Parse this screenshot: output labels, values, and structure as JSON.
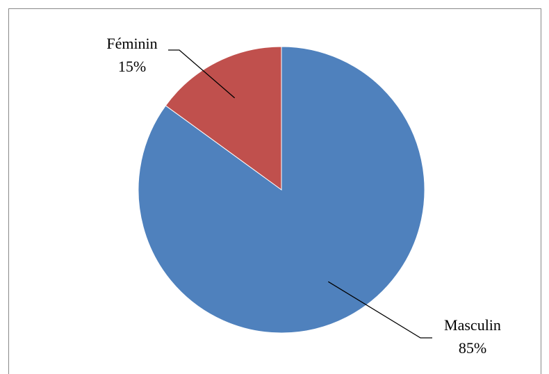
{
  "chart_data": {
    "type": "pie",
    "categories": [
      "Masculin",
      "Féminin"
    ],
    "values": [
      85,
      15
    ],
    "value_labels": [
      "85%",
      "15%"
    ],
    "colors": [
      "#4f81bd",
      "#c0504d"
    ]
  }
}
